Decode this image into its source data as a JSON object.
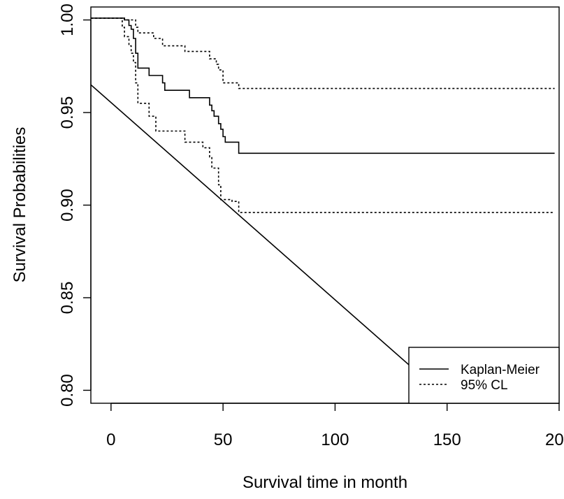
{
  "chart_data": {
    "type": "line",
    "title": "",
    "xlabel": "Survival time in month",
    "ylabel": "Survival Probabilities",
    "xlim": [
      -9,
      200
    ],
    "ylim": [
      0.793,
      1.007
    ],
    "x_ticks": [
      0,
      50,
      100,
      150,
      200
    ],
    "x_tick_labels": [
      "0",
      "50",
      "100",
      "150",
      "200"
    ],
    "y_ticks": [
      0.8,
      0.85,
      0.9,
      0.95,
      1.0
    ],
    "y_tick_labels": [
      "0.80",
      "0.85",
      "0.90",
      "0.95",
      "1.00"
    ],
    "grid": false,
    "legend": {
      "position": "bottom-right",
      "entries": [
        {
          "label": "Kaplan-Meier",
          "line_style": "solid"
        },
        {
          "label": "95% CL",
          "line_style": "dotted"
        }
      ]
    },
    "series": [
      {
        "name": "Kaplan-Meier",
        "line_style": "solid",
        "step": true,
        "points": [
          [
            -9,
            1.001
          ],
          [
            6,
            1.0
          ],
          [
            8,
            0.997
          ],
          [
            9,
            0.995
          ],
          [
            10,
            0.99
          ],
          [
            11,
            0.982
          ],
          [
            12,
            0.974
          ],
          [
            17,
            0.97
          ],
          [
            23,
            0.966
          ],
          [
            24,
            0.962
          ],
          [
            35,
            0.958
          ],
          [
            44,
            0.954
          ],
          [
            45,
            0.951
          ],
          [
            46,
            0.948
          ],
          [
            48,
            0.944
          ],
          [
            49,
            0.941
          ],
          [
            50,
            0.937
          ],
          [
            51,
            0.934
          ],
          [
            57,
            0.928
          ],
          [
            198,
            0.928
          ]
        ]
      },
      {
        "name": "95% CL",
        "line_style": "dotted",
        "step": true,
        "points": [
          [
            -9,
            1.001
          ],
          [
            6,
            1.0
          ],
          [
            11,
            0.996
          ],
          [
            12,
            0.993
          ],
          [
            19,
            0.99
          ],
          [
            23,
            0.986
          ],
          [
            33,
            0.983
          ],
          [
            44,
            0.979
          ],
          [
            47,
            0.976
          ],
          [
            48,
            0.973
          ],
          [
            50,
            0.966
          ],
          [
            57,
            0.963
          ],
          [
            198,
            0.963
          ]
        ]
      },
      {
        "name": "95% CL",
        "line_style": "dotted",
        "step": true,
        "points": [
          [
            -9,
            1.001
          ],
          [
            5,
            0.996
          ],
          [
            6,
            0.991
          ],
          [
            8,
            0.986
          ],
          [
            9,
            0.982
          ],
          [
            10,
            0.977
          ],
          [
            11,
            0.966
          ],
          [
            12,
            0.955
          ],
          [
            17,
            0.948
          ],
          [
            20,
            0.94
          ],
          [
            33,
            0.934
          ],
          [
            41,
            0.931
          ],
          [
            44,
            0.926
          ],
          [
            45,
            0.92
          ],
          [
            48,
            0.911
          ],
          [
            49,
            0.903
          ],
          [
            54,
            0.902
          ],
          [
            57,
            0.896
          ],
          [
            198,
            0.896
          ]
        ]
      },
      {
        "name": "",
        "line_style": "solid",
        "step": false,
        "points": [
          [
            -9,
            0.965
          ],
          [
            144,
            0.802
          ]
        ]
      }
    ]
  }
}
